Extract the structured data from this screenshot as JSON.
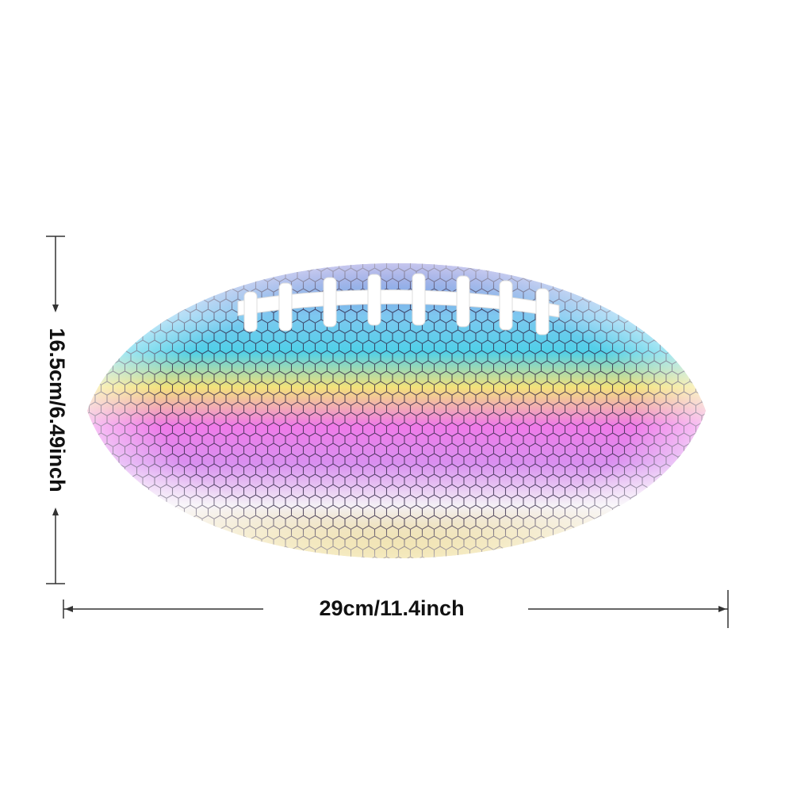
{
  "dimensions": {
    "height_label": "16.5cm/6.49inch",
    "width_label": "29cm/11.4inch"
  }
}
